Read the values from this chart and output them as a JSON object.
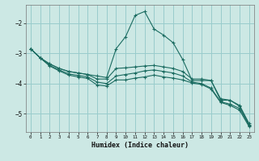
{
  "xlabel": "Humidex (Indice chaleur)",
  "bg_color": "#cce8e4",
  "grid_color": "#99cccc",
  "line_color": "#1a6b60",
  "xlim": [
    -0.5,
    23.5
  ],
  "ylim": [
    -5.6,
    -1.4
  ],
  "yticks": [
    -5,
    -4,
    -3,
    -2
  ],
  "xticks": [
    0,
    1,
    2,
    3,
    4,
    5,
    6,
    7,
    8,
    9,
    10,
    11,
    12,
    13,
    14,
    15,
    16,
    17,
    18,
    19,
    20,
    21,
    22,
    23
  ],
  "series": [
    {
      "x": [
        0,
        1,
        2,
        3,
        4,
        5,
        6,
        7,
        8,
        9,
        10,
        11,
        12,
        13,
        14,
        15,
        16,
        17,
        18,
        19,
        20,
        21,
        22,
        23
      ],
      "y": [
        -2.85,
        -3.15,
        -3.35,
        -3.5,
        -3.6,
        -3.65,
        -3.7,
        -3.75,
        -3.8,
        -2.85,
        -2.45,
        -1.75,
        -1.62,
        -2.2,
        -2.4,
        -2.65,
        -3.2,
        -3.9,
        -3.9,
        -3.9,
        -4.55,
        -4.55,
        -4.75,
        -5.35
      ]
    },
    {
      "x": [
        0,
        1,
        2,
        3,
        4,
        5,
        6,
        7,
        8,
        9,
        10,
        11,
        12,
        13,
        14,
        15,
        16,
        17,
        18,
        19,
        20,
        21,
        22,
        23
      ],
      "y": [
        -2.85,
        -3.15,
        -3.35,
        -3.5,
        -3.6,
        -3.65,
        -3.7,
        -3.85,
        -3.85,
        -3.5,
        -3.48,
        -3.45,
        -3.42,
        -3.4,
        -3.45,
        -3.5,
        -3.6,
        -3.85,
        -3.85,
        -3.9,
        -4.5,
        -4.55,
        -4.72,
        -5.32
      ]
    },
    {
      "x": [
        0,
        1,
        2,
        3,
        4,
        5,
        6,
        7,
        8,
        9,
        10,
        11,
        12,
        13,
        14,
        15,
        16,
        17,
        18,
        19,
        20,
        21,
        22,
        23
      ],
      "y": [
        -2.85,
        -3.15,
        -3.4,
        -3.55,
        -3.68,
        -3.73,
        -3.78,
        -3.95,
        -4.0,
        -3.75,
        -3.7,
        -3.65,
        -3.58,
        -3.55,
        -3.6,
        -3.65,
        -3.75,
        -3.95,
        -4.0,
        -4.15,
        -4.6,
        -4.68,
        -4.82,
        -5.38
      ]
    },
    {
      "x": [
        0,
        1,
        2,
        3,
        4,
        5,
        6,
        7,
        8,
        9,
        10,
        11,
        12,
        13,
        14,
        15,
        16,
        17,
        18,
        19,
        20,
        21,
        22,
        23
      ],
      "y": [
        -2.85,
        -3.15,
        -3.42,
        -3.58,
        -3.72,
        -3.78,
        -3.83,
        -4.05,
        -4.08,
        -3.88,
        -3.88,
        -3.82,
        -3.78,
        -3.72,
        -3.78,
        -3.82,
        -3.88,
        -3.98,
        -4.03,
        -4.18,
        -4.62,
        -4.72,
        -4.88,
        -5.42
      ]
    }
  ]
}
